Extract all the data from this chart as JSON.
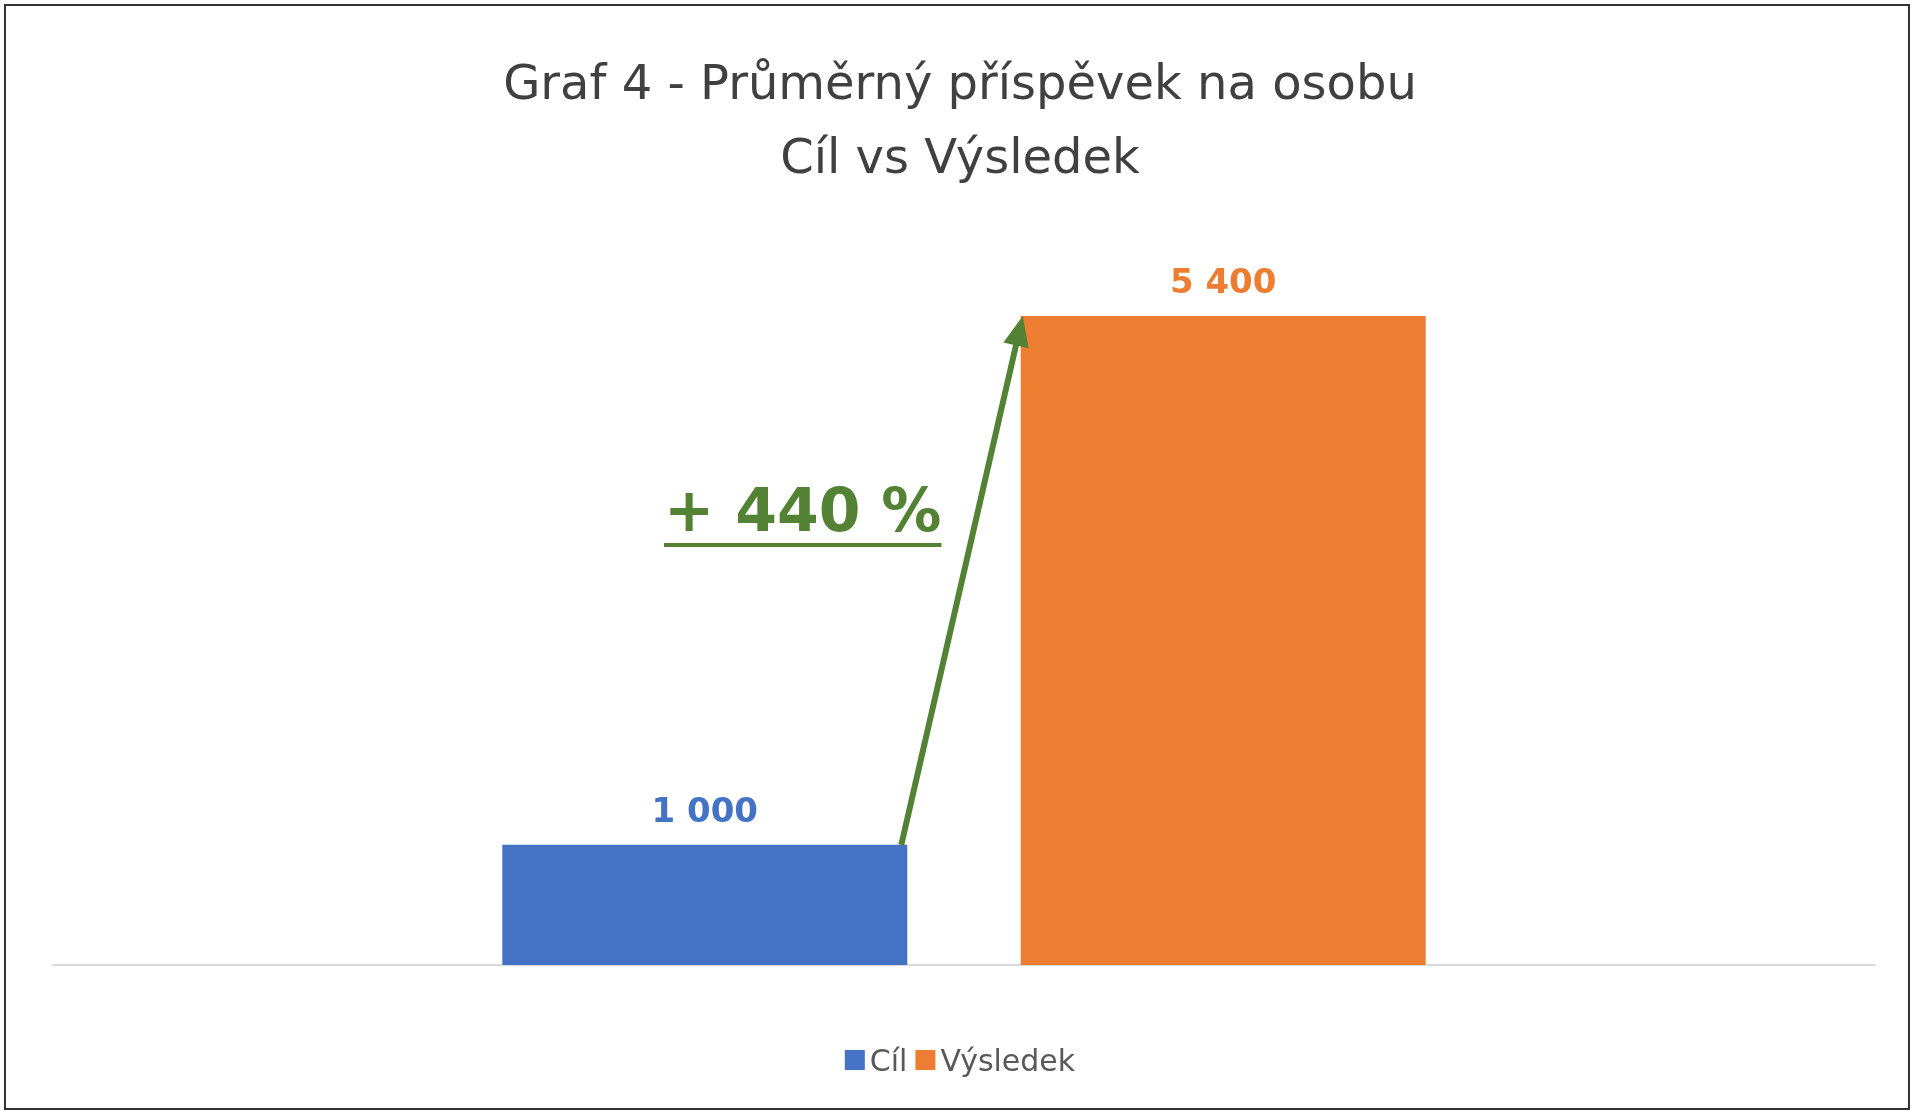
{
  "chart_data": {
    "type": "bar",
    "title": "Graf 4 - Průměrný příspěvek na osobu\nCíl vs Výsledek",
    "categories": [
      null
    ],
    "series": [
      {
        "name": "Cíl",
        "color": "#4472c4",
        "values": [
          1000
        ]
      },
      {
        "name": "Výsledek",
        "color": "#ed7d31",
        "values": [
          5400
        ]
      }
    ],
    "annotations": [
      "+ 440 %"
    ],
    "data_labels": true,
    "legend": "bottom",
    "grid": false
  }
}
